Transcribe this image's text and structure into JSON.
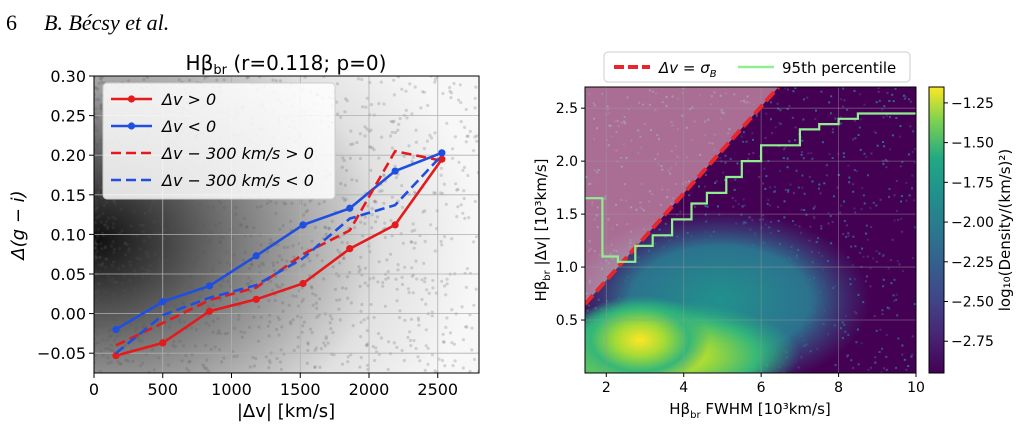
{
  "header": {
    "page_number": "6",
    "running_head": "B. Bécsy et al."
  },
  "colors": {
    "red": "#e41a1c",
    "blue": "#1f4fe0",
    "green": "#90ee90",
    "pinkline": "#e8262b"
  },
  "left": {
    "title_main": "Hβ",
    "title_sub": "br",
    "title_rest": " (r=0.118; p=0)",
    "xlabel": "|Δv| [km/s]",
    "ylabel": "Δ(g − i)",
    "chart_data": {
      "type": "line",
      "x_ticks": [
        "0",
        "500",
        "1000",
        "1500",
        "2000",
        "2500"
      ],
      "x_tick_values": [
        0,
        500,
        1000,
        1500,
        2000,
        2500
      ],
      "y_ticks": [
        "−0.05",
        "0.00",
        "0.05",
        "0.10",
        "0.15",
        "0.20",
        "0.25",
        "0.30"
      ],
      "y_tick_values": [
        -0.05,
        0.0,
        0.05,
        0.1,
        0.15,
        0.2,
        0.25,
        0.3
      ],
      "xlim": [
        0,
        2800
      ],
      "ylim": [
        -0.075,
        0.3
      ],
      "grid": true,
      "legend_placement": "top-left",
      "series": [
        {
          "name": "Δv > 0",
          "style": "solid-marker",
          "color": "#e41a1c",
          "x": [
            160,
            500,
            840,
            1180,
            1520,
            1860,
            2190,
            2530
          ],
          "y": [
            -0.053,
            -0.037,
            0.003,
            0.018,
            0.038,
            0.082,
            0.112,
            0.195
          ]
        },
        {
          "name": "Δv < 0",
          "style": "solid-marker",
          "color": "#1f4fe0",
          "x": [
            160,
            500,
            840,
            1180,
            1520,
            1860,
            2190,
            2530
          ],
          "y": [
            -0.02,
            0.015,
            0.035,
            0.073,
            0.112,
            0.133,
            0.18,
            0.203
          ]
        },
        {
          "name": "Δv − 300 km/s > 0",
          "style": "dashed",
          "color": "#e41a1c",
          "x": [
            160,
            500,
            840,
            1180,
            1520,
            1860,
            2190,
            2530
          ],
          "y": [
            -0.04,
            -0.012,
            0.017,
            0.033,
            0.075,
            0.105,
            0.205,
            0.193
          ]
        },
        {
          "name": "Δv − 300 km/s < 0",
          "style": "dashed",
          "color": "#1f4fe0",
          "x": [
            160,
            500,
            840,
            1180,
            1520,
            1860,
            2190,
            2530
          ],
          "y": [
            -0.05,
            -0.002,
            0.02,
            0.036,
            0.07,
            0.12,
            0.137,
            0.2
          ]
        }
      ]
    }
  },
  "right": {
    "legend": {
      "line1": "Δv = σ",
      "line1_sub": "B",
      "line2": "95th percentile"
    },
    "xlabel_main": "Hβ",
    "xlabel_sub": "br",
    "xlabel_rest": " FWHM [10³km/s]",
    "ylabel_main": "Hβ",
    "ylabel_sub": "br",
    "ylabel_rest": " |Δv| [10³km/s]",
    "colorbar_label": "log₁₀(Density/(km/s)²)",
    "chart_data": {
      "type": "heatmap",
      "x_ticks": [
        "2",
        "4",
        "6",
        "8",
        "10"
      ],
      "x_tick_values": [
        2,
        4,
        6,
        8,
        10
      ],
      "y_ticks": [
        "0.5",
        "1.0",
        "1.5",
        "2.0",
        "2.5"
      ],
      "y_tick_values": [
        0.5,
        1.0,
        1.5,
        2.0,
        2.5
      ],
      "xlim": [
        1.45,
        10
      ],
      "ylim": [
        0,
        2.7
      ],
      "colorbar_ticks": [
        "−1.25",
        "−1.50",
        "−1.75",
        "−2.00",
        "−2.25",
        "−2.50",
        "−2.75"
      ],
      "colorbar_values": [
        -1.25,
        -1.5,
        -1.75,
        -2.0,
        -2.25,
        -2.5,
        -2.75
      ],
      "colorbar_range": [
        -2.95,
        -1.15
      ],
      "line_sigma_b": {
        "x": [
          1.45,
          6.45
        ],
        "y": [
          0.65,
          2.7
        ]
      },
      "percentile_95": {
        "x": [
          1.45,
          1.9,
          1.9,
          2.3,
          2.3,
          2.75,
          2.75,
          3.2,
          3.2,
          3.7,
          3.7,
          4.2,
          4.2,
          4.6,
          4.6,
          5.1,
          5.1,
          5.5,
          5.5,
          6.0,
          6.0,
          7.0,
          7.0,
          7.5,
          7.5,
          8.0,
          8.0,
          8.5,
          8.5,
          10.0
        ],
        "y": [
          1.65,
          1.65,
          1.1,
          1.1,
          1.05,
          1.05,
          1.2,
          1.2,
          1.3,
          1.3,
          1.45,
          1.45,
          1.6,
          1.6,
          1.7,
          1.7,
          1.85,
          1.85,
          2.0,
          2.0,
          2.15,
          2.15,
          2.3,
          2.3,
          2.35,
          2.35,
          2.4,
          2.4,
          2.45,
          2.45
        ]
      }
    }
  }
}
